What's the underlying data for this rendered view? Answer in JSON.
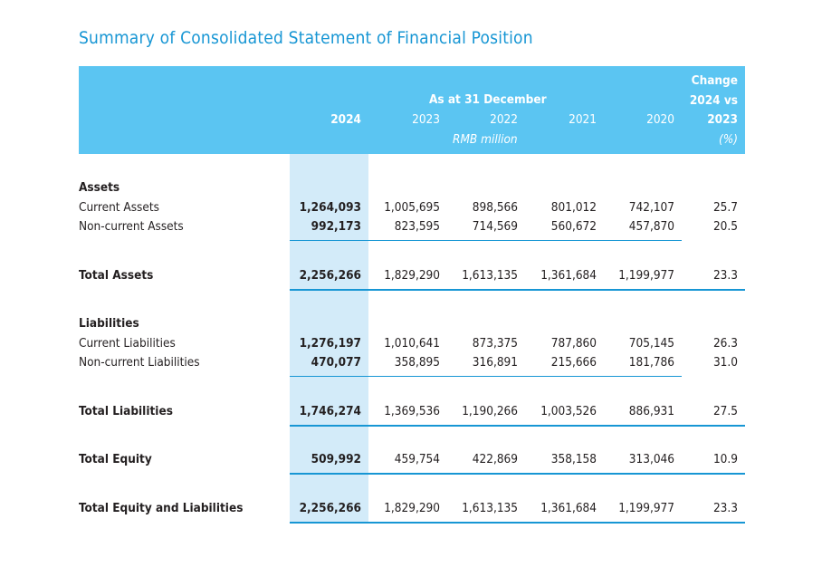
{
  "title": "Summary of Consolidated Statement of Financial Position",
  "header": {
    "group_label": "As at 31 December",
    "unit": "RMB million",
    "years": [
      "2024",
      "2023",
      "2022",
      "2021",
      "2020"
    ],
    "change_label": [
      "Change",
      "2024 vs",
      "2023"
    ],
    "change_unit": "(%)"
  },
  "colors": {
    "accent": "#1796d4",
    "header_bg": "#5bc5f2",
    "highlight": "#d3ebf9"
  },
  "rows": [
    {
      "label": "Assets",
      "type": "section"
    },
    {
      "label": "Current Assets",
      "type": "item",
      "values": [
        "1,264,093",
        "1,005,695",
        "898,566",
        "801,012",
        "742,107"
      ],
      "change": "25.7"
    },
    {
      "label": "Non-current Assets",
      "type": "item",
      "values": [
        "992,173",
        "823,595",
        "714,569",
        "560,672",
        "457,870"
      ],
      "change": "20.5"
    },
    {
      "label": "Total Assets",
      "type": "total",
      "values": [
        "2,256,266",
        "1,829,290",
        "1,613,135",
        "1,361,684",
        "1,199,977"
      ],
      "change": "23.3"
    },
    {
      "label": "Liabilities",
      "type": "section"
    },
    {
      "label": "Current Liabilities",
      "type": "item",
      "values": [
        "1,276,197",
        "1,010,641",
        "873,375",
        "787,860",
        "705,145"
      ],
      "change": "26.3"
    },
    {
      "label": "Non-current Liabilities",
      "type": "item",
      "values": [
        "470,077",
        "358,895",
        "316,891",
        "215,666",
        "181,786"
      ],
      "change": "31.0"
    },
    {
      "label": "Total Liabilities",
      "type": "total",
      "values": [
        "1,746,274",
        "1,369,536",
        "1,190,266",
        "1,003,526",
        "886,931"
      ],
      "change": "27.5"
    },
    {
      "label": "Total Equity",
      "type": "total",
      "values": [
        "509,992",
        "459,754",
        "422,869",
        "358,158",
        "313,046"
      ],
      "change": "10.9"
    },
    {
      "label": "Total Equity and Liabilities",
      "type": "total",
      "values": [
        "2,256,266",
        "1,829,290",
        "1,613,135",
        "1,361,684",
        "1,199,977"
      ],
      "change": "23.3"
    }
  ]
}
